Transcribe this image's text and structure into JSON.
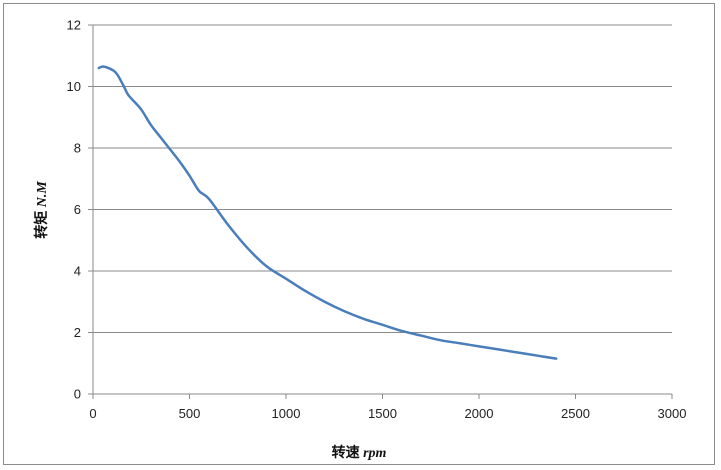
{
  "chart_data": {
    "type": "line",
    "title": "",
    "xlabel": {
      "main": "转速 ",
      "unit": "rpm"
    },
    "ylabel": {
      "main": "转矩 ",
      "unit": "N.M"
    },
    "xlim": [
      0,
      3000
    ],
    "ylim": [
      0,
      12
    ],
    "x_ticks": [
      "0",
      "500",
      "1000",
      "1500",
      "2000",
      "2500",
      "3000"
    ],
    "y_ticks": [
      "0",
      "2",
      "4",
      "6",
      "8",
      "10",
      "12"
    ],
    "grid": {
      "horizontal": true,
      "vertical": false
    },
    "legend": "none",
    "series": [
      {
        "color": "#4a7ebb",
        "x": [
          30,
          50,
          80,
          110,
          130,
          160,
          180,
          200,
          250,
          300,
          350,
          400,
          450,
          500,
          550,
          600,
          700,
          800,
          900,
          1000,
          1100,
          1200,
          1300,
          1400,
          1500,
          1600,
          1700,
          1800,
          1900,
          2000,
          2100,
          2200,
          2300,
          2400
        ],
        "y": [
          10.6,
          10.65,
          10.6,
          10.5,
          10.35,
          10.0,
          9.75,
          9.6,
          9.25,
          8.75,
          8.35,
          7.95,
          7.55,
          7.1,
          6.6,
          6.35,
          5.5,
          4.75,
          4.15,
          3.75,
          3.35,
          3.0,
          2.7,
          2.45,
          2.25,
          2.05,
          1.9,
          1.75,
          1.65,
          1.55,
          1.45,
          1.35,
          1.25,
          1.15
        ]
      }
    ]
  }
}
